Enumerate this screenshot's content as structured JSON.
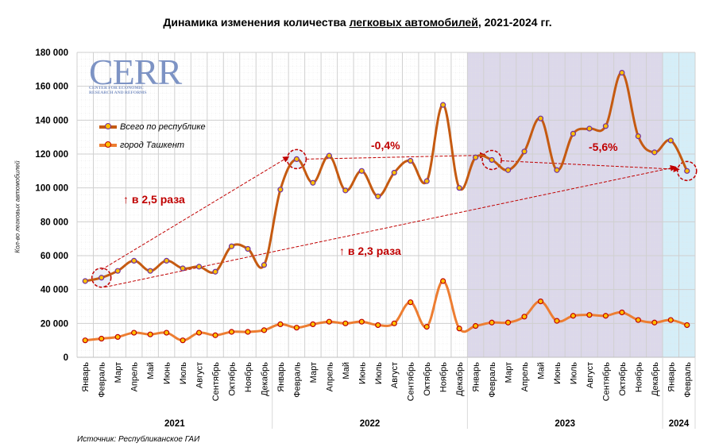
{
  "header": {
    "title_pre": "Динамика изменения количества ",
    "title_underlined": "легковых автомобилей",
    "title_post": ", 2021-2024 гг."
  },
  "logo": {
    "main": "CERR",
    "sub_line1": "CENTER FOR ECONOMIC",
    "sub_line2": "RESEARCH AND REFORMS"
  },
  "source": "Источник: Республиканское ГАИ",
  "annotations": {
    "growth_total": "↑ в 2,5 раза",
    "growth_total2": "↑ в 2,3 раза",
    "change_2022": "-0,4%",
    "change_2023": "-5,6%"
  },
  "colors": {
    "total_line": "#c55a11",
    "tashkent_line": "#ed7d31",
    "marker_fill": "#ffc000",
    "total_marker_edge": "#7030a0",
    "tashkent_marker_edge": "#c00000",
    "annotation": "#c00000",
    "band_2023": "#dcd8ea",
    "band_2024": "#d5eef8"
  },
  "chart_data": {
    "type": "line",
    "title": "Динамика изменения количества легковых автомобилей, 2021-2024 гг.",
    "xlabel": "",
    "ylabel": "Кол-во легковых автомобилей",
    "ylim": [
      0,
      180000
    ],
    "yticks": [
      0,
      20000,
      40000,
      60000,
      80000,
      100000,
      120000,
      140000,
      160000,
      180000
    ],
    "ytick_labels": [
      "0",
      "20 000",
      "40 000",
      "60 000",
      "80 000",
      "100 000",
      "120 000",
      "140 000",
      "160 000",
      "180 000"
    ],
    "grid": true,
    "legend_position": "upper-left",
    "year_groups": [
      {
        "year": "2021",
        "count": 12
      },
      {
        "year": "2022",
        "count": 12
      },
      {
        "year": "2023",
        "count": 12
      },
      {
        "year": "2024",
        "count": 2
      }
    ],
    "categories": [
      "Январь",
      "Февраль",
      "Март",
      "Апрель",
      "Май",
      "Июнь",
      "Июль",
      "Август",
      "Сентябрь",
      "Октябрь",
      "Ноябрь",
      "Декабрь",
      "Январь",
      "Февраль",
      "Март",
      "Апрель",
      "Май",
      "Июнь",
      "Июль",
      "Август",
      "Сентябрь",
      "Октябрь",
      "Ноябрь",
      "Декабрь",
      "Январь",
      "Февраль",
      "Март",
      "Апрель",
      "Май",
      "Июнь",
      "Июль",
      "Август",
      "Сентябрь",
      "Октябрь",
      "Ноябрь",
      "Декабрь",
      "Январь",
      "Февраль"
    ],
    "series": [
      {
        "name": "Всего по республике",
        "values": [
          45000,
          47000,
          51000,
          57000,
          51000,
          57000,
          52500,
          53500,
          50500,
          65500,
          64000,
          54500,
          99000,
          117000,
          103000,
          119000,
          98500,
          110000,
          95000,
          109000,
          116000,
          104000,
          149000,
          100000,
          118000,
          116500,
          110500,
          121500,
          141000,
          110500,
          132000,
          135000,
          136500,
          168000,
          130500,
          121000,
          128000,
          110000
        ]
      },
      {
        "name": "город Ташкент",
        "values": [
          10000,
          11000,
          12000,
          14500,
          13500,
          14500,
          10000,
          14500,
          13000,
          15000,
          15000,
          16000,
          19500,
          17500,
          19500,
          21000,
          20000,
          21000,
          19000,
          20000,
          32500,
          18000,
          45000,
          17000,
          18500,
          20500,
          20500,
          24000,
          33000,
          21500,
          24500,
          25000,
          24500,
          26500,
          22000,
          20500,
          22000,
          19000
        ]
      }
    ],
    "annotations": [
      {
        "text": "↑ в 2,5 раза",
        "from_index": 1,
        "to_index": 13
      },
      {
        "text": "↑ в 2,3 раза",
        "from_index": 1,
        "to_index": 37
      },
      {
        "text": "-0,4%",
        "from_index": 13,
        "to_index": 25
      },
      {
        "text": "-5,6%",
        "from_index": 25,
        "to_index": 37
      }
    ]
  }
}
